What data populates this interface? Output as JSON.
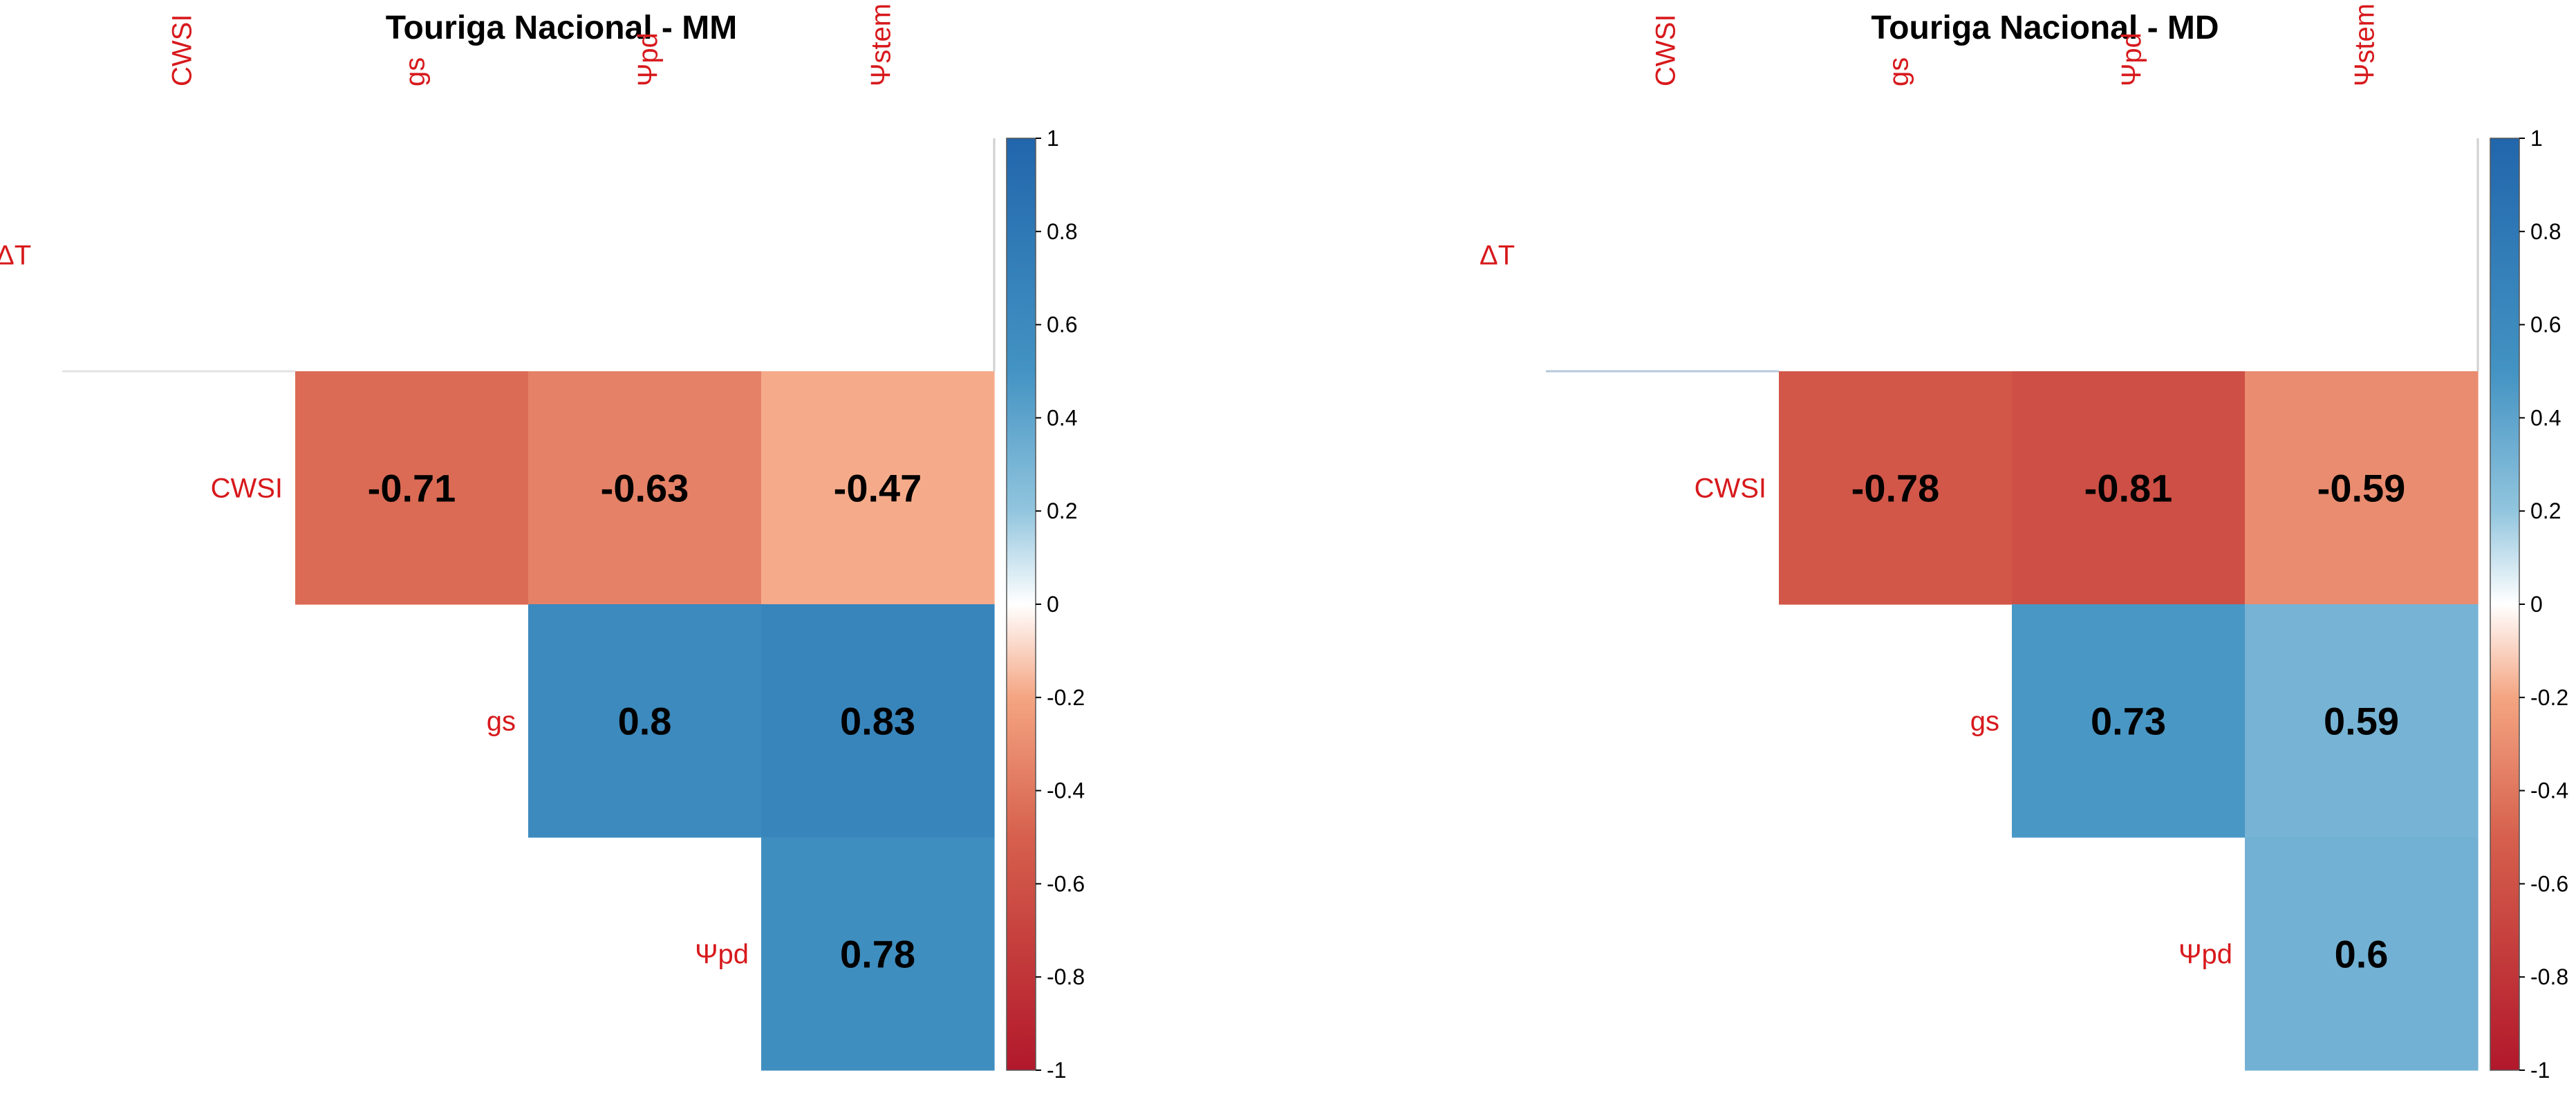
{
  "chart_data": [
    {
      "type": "heatmap",
      "title": "Touriga Nacional - MM",
      "variables": [
        "ΔT",
        "CWSI",
        "gs",
        "Ψpd",
        "Ψstem"
      ],
      "column_labels": [
        "CWSI",
        "gs",
        "Ψpd",
        "Ψstem"
      ],
      "row_labels": [
        "ΔT",
        "CWSI",
        "gs",
        "Ψpd"
      ],
      "matrix": [
        [
          null,
          null,
          null,
          null
        ],
        [
          -0.71,
          -0.63,
          -0.47,
          null
        ],
        [
          0.8,
          0.83,
          null,
          null
        ],
        [
          0.78,
          null,
          null,
          null
        ]
      ],
      "cells": [
        {
          "row": "CWSI",
          "col": "gs",
          "value": -0.71,
          "label": "-0.71"
        },
        {
          "row": "CWSI",
          "col": "Ψpd",
          "value": -0.63,
          "label": "-0.63"
        },
        {
          "row": "CWSI",
          "col": "Ψstem",
          "value": -0.47,
          "label": "-0.47"
        },
        {
          "row": "gs",
          "col": "Ψpd",
          "value": 0.8,
          "label": "0.8"
        },
        {
          "row": "gs",
          "col": "Ψstem",
          "value": 0.83,
          "label": "0.83"
        },
        {
          "row": "Ψpd",
          "col": "Ψstem",
          "value": 0.78,
          "label": "0.78"
        }
      ],
      "colorbar": {
        "range": [
          -1,
          1
        ],
        "ticks": [
          "1",
          "0.8",
          "0.6",
          "0.4",
          "0.2",
          "0",
          "-0.2",
          "-0.4",
          "-0.6",
          "-0.8",
          "-1"
        ],
        "colors": {
          "negative": "#B2182B",
          "zero": "#FFFFFF",
          "positive": "#2166AC"
        }
      },
      "label_color": "#D7191C"
    },
    {
      "type": "heatmap",
      "title": "Touriga Nacional - MD",
      "variables": [
        "ΔT",
        "CWSI",
        "gs",
        "Ψpd",
        "Ψstem"
      ],
      "column_labels": [
        "CWSI",
        "gs",
        "Ψpd",
        "Ψstem"
      ],
      "row_labels": [
        "ΔT",
        "CWSI",
        "gs",
        "Ψpd"
      ],
      "matrix": [
        [
          null,
          null,
          null,
          null
        ],
        [
          -0.78,
          -0.81,
          -0.59,
          null
        ],
        [
          0.73,
          0.59,
          null,
          null
        ],
        [
          0.6,
          null,
          null,
          null
        ]
      ],
      "cells": [
        {
          "row": "CWSI",
          "col": "gs",
          "value": -0.78,
          "label": "-0.78"
        },
        {
          "row": "CWSI",
          "col": "Ψpd",
          "value": -0.81,
          "label": "-0.81"
        },
        {
          "row": "CWSI",
          "col": "Ψstem",
          "value": -0.59,
          "label": "-0.59"
        },
        {
          "row": "gs",
          "col": "Ψpd",
          "value": 0.73,
          "label": "0.73"
        },
        {
          "row": "gs",
          "col": "Ψstem",
          "value": 0.59,
          "label": "0.59"
        },
        {
          "row": "Ψpd",
          "col": "Ψstem",
          "value": 0.6,
          "label": "0.6"
        }
      ],
      "colorbar": {
        "range": [
          -1,
          1
        ],
        "ticks": [
          "1",
          "0.8",
          "0.6",
          "0.4",
          "0.2",
          "0",
          "-0.2",
          "-0.4",
          "-0.6",
          "-0.8",
          "-1"
        ],
        "colors": {
          "negative": "#B2182B",
          "zero": "#FFFFFF",
          "positive": "#2166AC"
        }
      },
      "label_color": "#D7191C"
    }
  ]
}
